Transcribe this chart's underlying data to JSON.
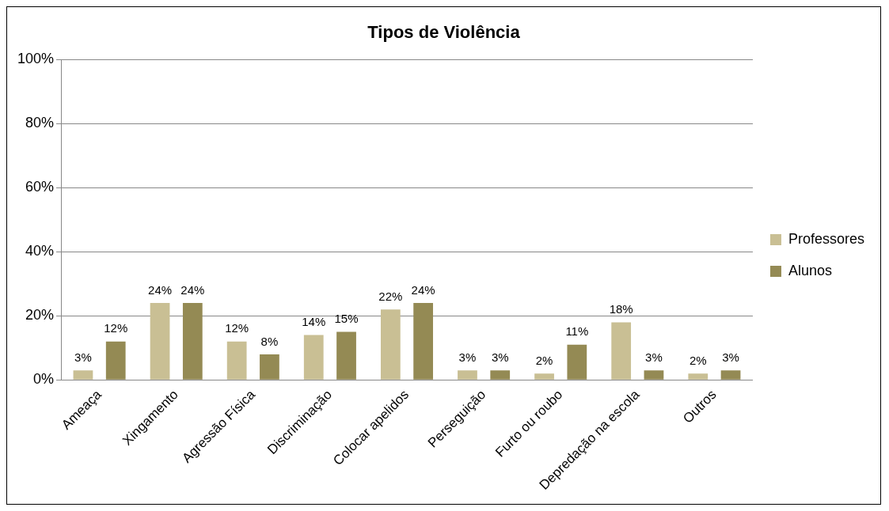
{
  "chart_data": {
    "type": "bar",
    "title": "Tipos de Violência",
    "categories": [
      "Ameaça",
      "Xingamento",
      "Agressão Física",
      "Discriminação",
      "Colocar apelidos",
      "Perseguição",
      "Furto ou roubo",
      "Depredação na escola",
      "Outros"
    ],
    "series": [
      {
        "name": "Professores",
        "color": "#c9bf94",
        "values": [
          3,
          24,
          12,
          14,
          22,
          3,
          2,
          18,
          2
        ],
        "value_labels": [
          "3%",
          "24%",
          "12%",
          "14%",
          "22%",
          "3%",
          "2%",
          "18%",
          "2%"
        ]
      },
      {
        "name": "Alunos",
        "color": "#948a54",
        "values": [
          12,
          24,
          8,
          15,
          24,
          3,
          11,
          3,
          3
        ],
        "value_labels": [
          "12%",
          "24%",
          "8%",
          "15%",
          "24%",
          "3%",
          "11%",
          "3%",
          "3%"
        ]
      }
    ],
    "ylim": [
      0,
      100
    ],
    "yticks": [
      {
        "value": 0,
        "label": "0%"
      },
      {
        "value": 20,
        "label": "20%"
      },
      {
        "value": 40,
        "label": "40%"
      },
      {
        "value": 60,
        "label": "60%"
      },
      {
        "value": 80,
        "label": "80%"
      },
      {
        "value": 100,
        "label": "100%"
      }
    ],
    "grid": "y",
    "legend": "right"
  }
}
